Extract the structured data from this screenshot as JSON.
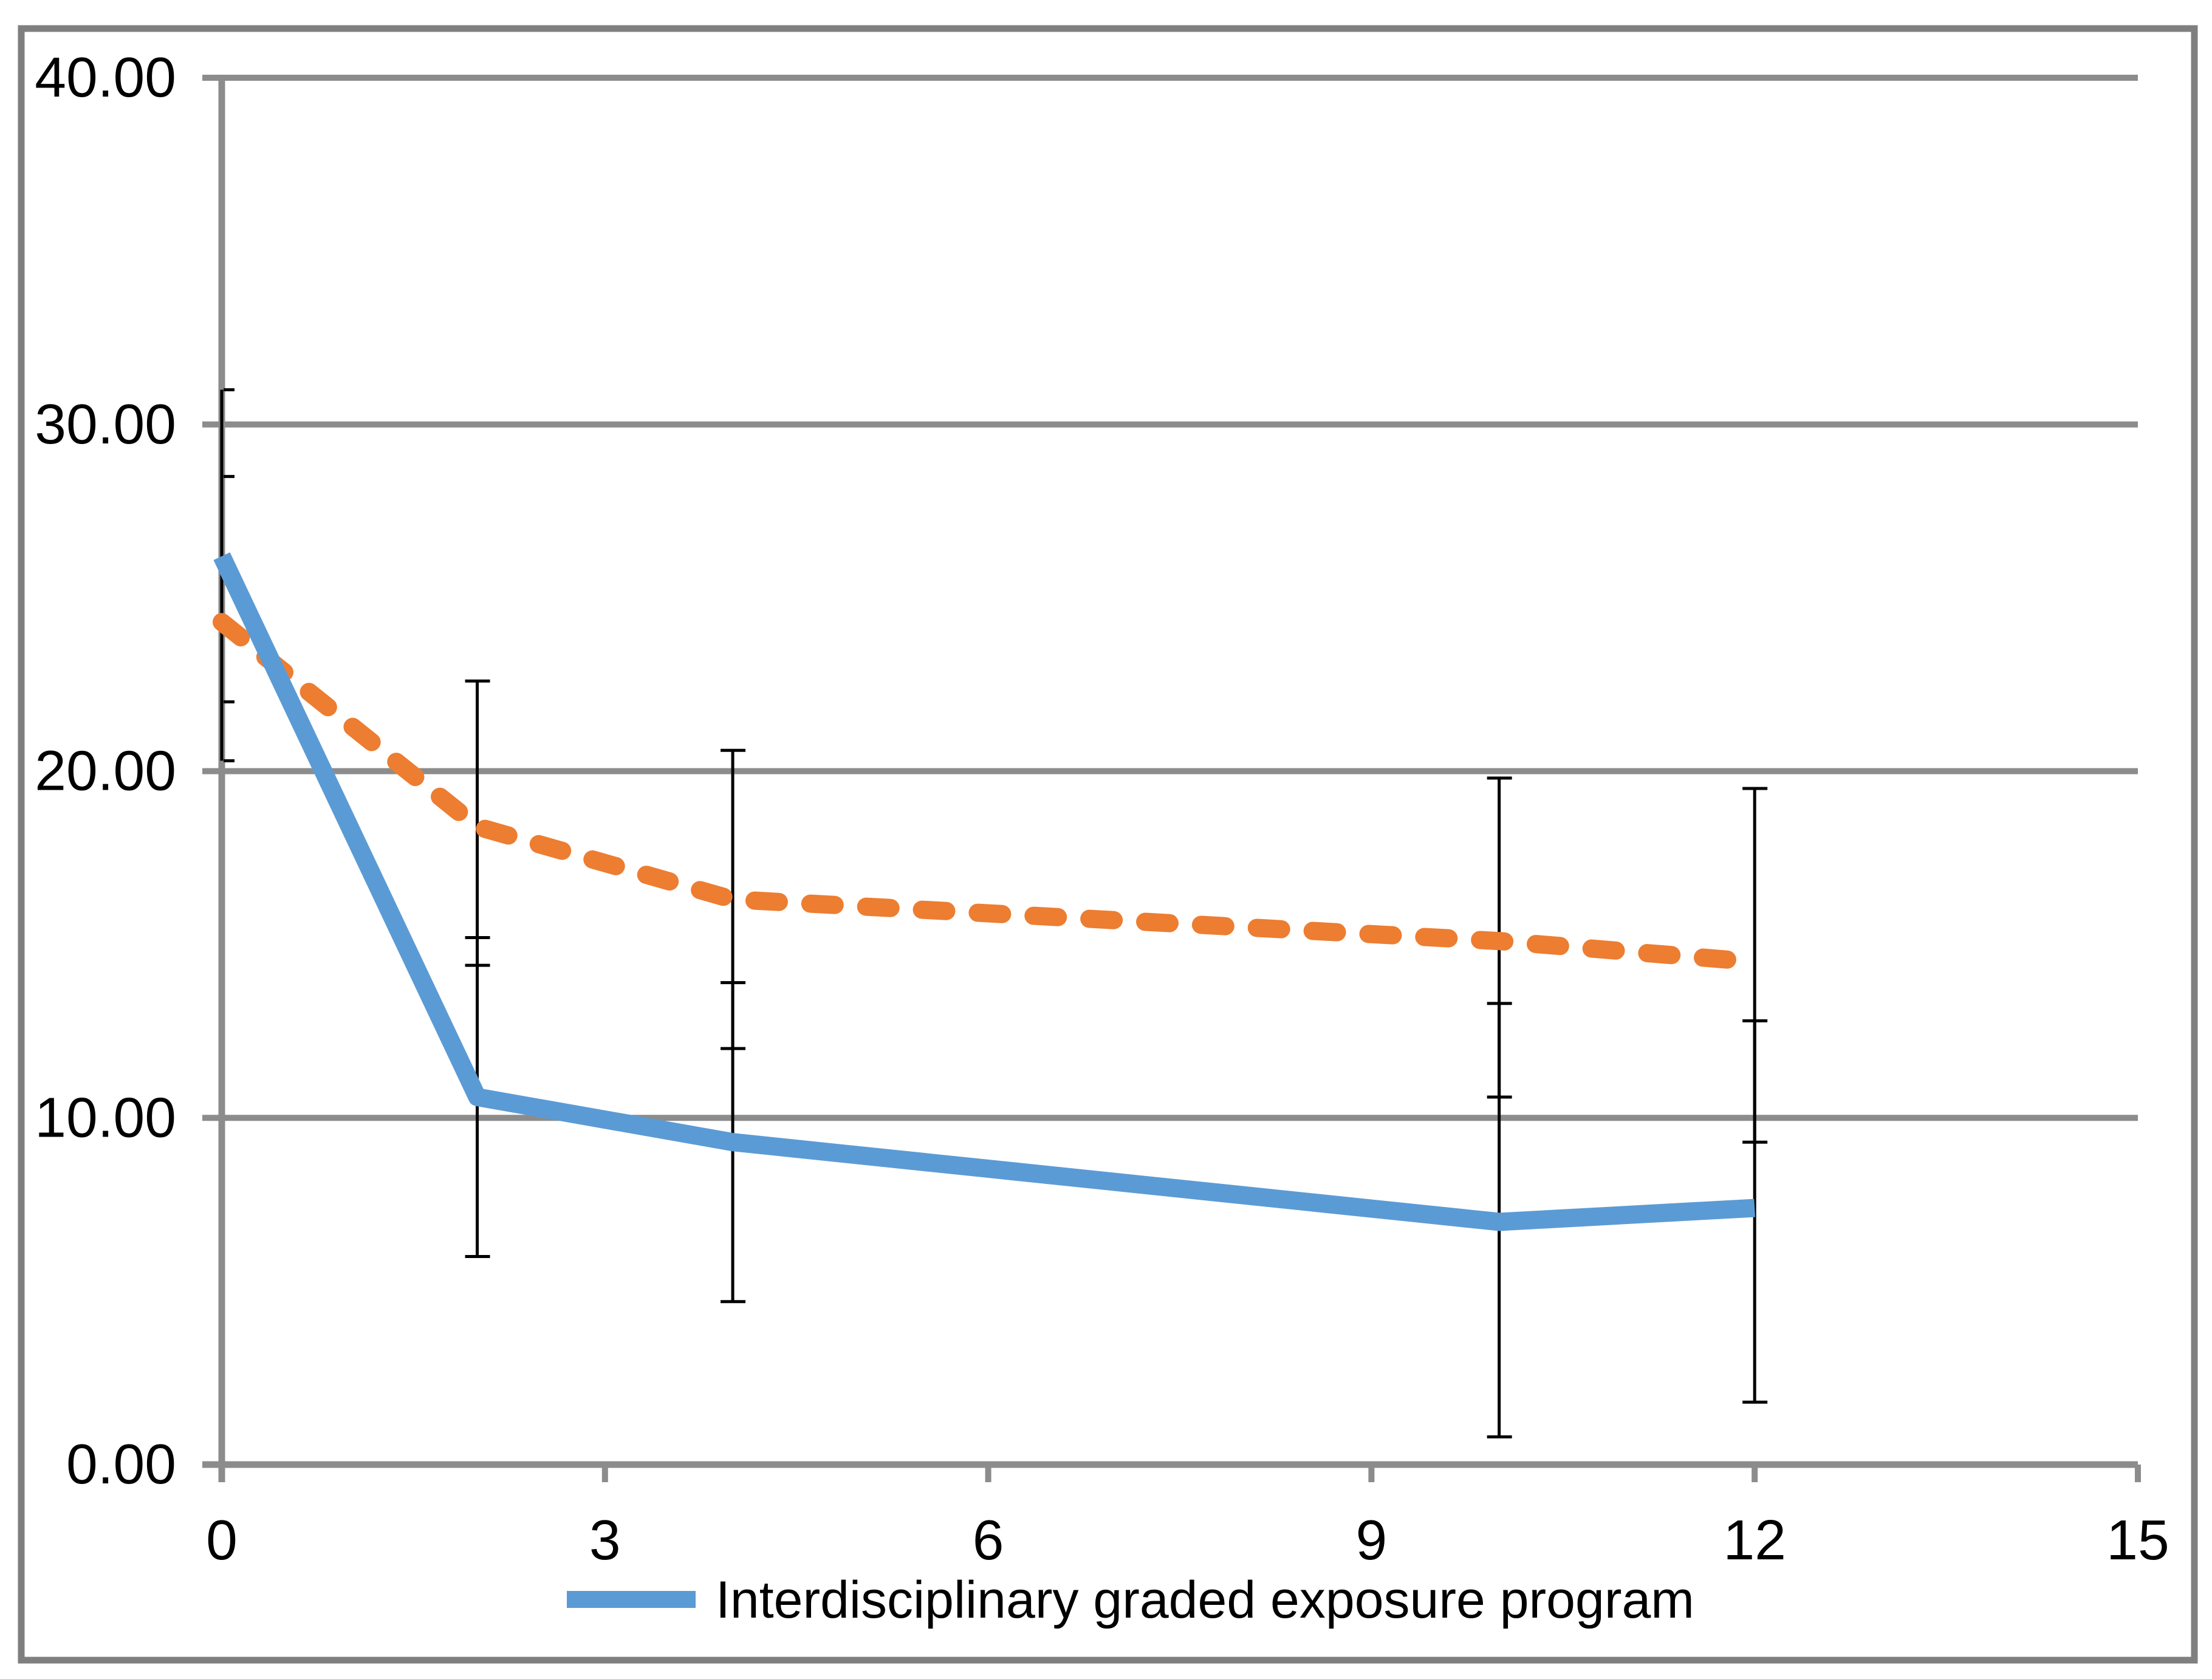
{
  "figure": {
    "background": "#FFFFFF",
    "border_color": "#7F7F7F",
    "gridline_color": "#8C8C8C",
    "axis_color": "#8C8C8C",
    "error_bar_color": "#000000",
    "text_color": "#000000"
  },
  "chart_data": {
    "type": "line",
    "title": "",
    "xlabel": "",
    "ylabel": "",
    "xlim": [
      0,
      15
    ],
    "ylim": [
      0,
      40
    ],
    "grid": "horizontal",
    "x_ticks": [
      "0",
      "3",
      "6",
      "9",
      "12",
      "15"
    ],
    "x_tick_values": [
      0,
      3,
      6,
      9,
      12,
      15
    ],
    "y_ticks": [
      "0.00",
      "10.00",
      "20.00",
      "30.00",
      "40.00"
    ],
    "y_tick_values": [
      0,
      10,
      20,
      30,
      40
    ],
    "x": [
      0,
      2,
      4,
      10,
      12
    ],
    "series": [
      {
        "id": "interdisciplinary-graded-exposure-program",
        "label": "Interdisciplinary graded exposure program",
        "color": "#5B9BD5",
        "line_style": "solid",
        "values": [
          26.2,
          10.6,
          9.3,
          7.0,
          7.4
        ],
        "error_low": [
          22.0,
          6.0,
          4.7,
          0.8,
          1.8
        ],
        "error_high": [
          31.0,
          15.2,
          13.9,
          13.3,
          12.8
        ],
        "in_legend": true
      },
      {
        "id": "comparison-dashed",
        "label": "",
        "color": "#ED7D31",
        "line_style": "dashed",
        "values": [
          24.3,
          18.4,
          16.3,
          15.1,
          14.5
        ],
        "error_low": [
          20.3,
          14.4,
          12.0,
          10.6,
          9.3
        ],
        "error_high": [
          28.5,
          22.6,
          20.6,
          19.8,
          19.5
        ],
        "in_legend": false
      }
    ],
    "legend": {
      "position": "bottom-center",
      "entries": [
        "Interdisciplinary graded exposure program"
      ]
    }
  }
}
